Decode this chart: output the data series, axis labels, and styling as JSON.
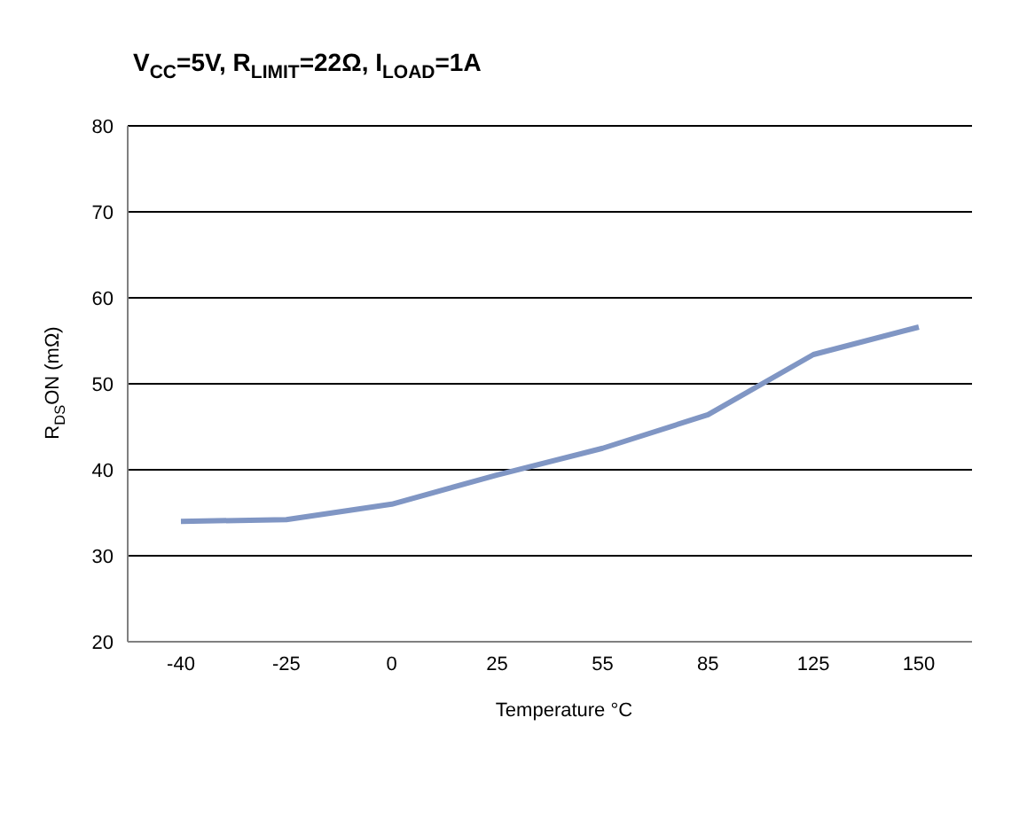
{
  "chart_data": {
    "type": "line",
    "title": "V$_{CC}$=5V, R$_{LIMIT}$=22Ω, I$_{LOAD}$=1A",
    "xlabel": "Temperature °C",
    "ylabel": "R$_{DS}$ON (mΩ)",
    "categories": [
      "-40",
      "-25",
      "0",
      "25",
      "55",
      "85",
      "125",
      "150"
    ],
    "series": [
      {
        "color": "#8096c4",
        "values": [
          34.0,
          34.2,
          36.0,
          39.4,
          42.5,
          46.4,
          53.4,
          56.6
        ]
      }
    ],
    "ylim": [
      20,
      80
    ],
    "yticks": [
      20,
      30,
      40,
      50,
      60,
      70,
      80
    ],
    "grid": "y",
    "legend": false,
    "marker": "none",
    "line_style": "solid"
  }
}
